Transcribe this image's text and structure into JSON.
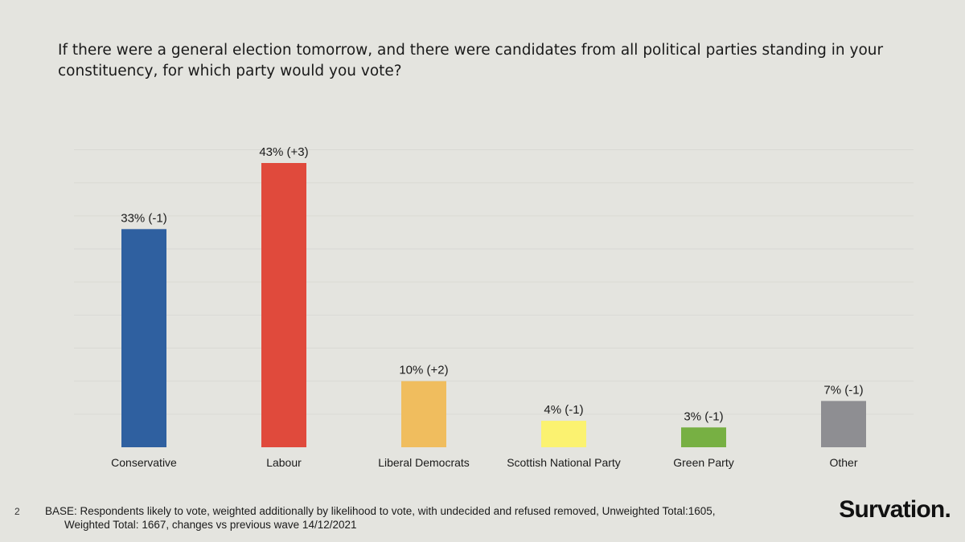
{
  "title": "If there were a general election tomorrow, and there were candidates from all political parties standing in your constituency, for which party would you vote?",
  "page_number": "2",
  "base_note": {
    "line1": "BASE: Respondents likely to vote, weighted additionally by likelihood to vote, with undecided and refused removed, Unweighted Total:1605,",
    "line2": "Weighted Total: 1667, changes vs previous wave 14/12/2021"
  },
  "logo_text": "Survation.",
  "chart_data": {
    "type": "bar",
    "title": "If there were a general election tomorrow, and there were candidates from all political parties standing in your constituency, for which party would you vote?",
    "xlabel": "",
    "ylabel": "",
    "ylim": [
      0,
      45
    ],
    "grid": true,
    "categories": [
      "Conservative",
      "Labour",
      "Liberal Democrats",
      "Scottish National Party",
      "Green Party",
      "Other"
    ],
    "values": [
      33,
      43,
      10,
      4,
      3,
      7
    ],
    "data_labels": [
      "33% (-1)",
      "43% (+3)",
      "10% (+2)",
      "4% (-1)",
      "3% (-1)",
      "7% (-1)"
    ],
    "colors": [
      "#2f60a0",
      "#e04a3c",
      "#f0bd5e",
      "#fbf270",
      "#77b043",
      "#8e8e92"
    ]
  }
}
